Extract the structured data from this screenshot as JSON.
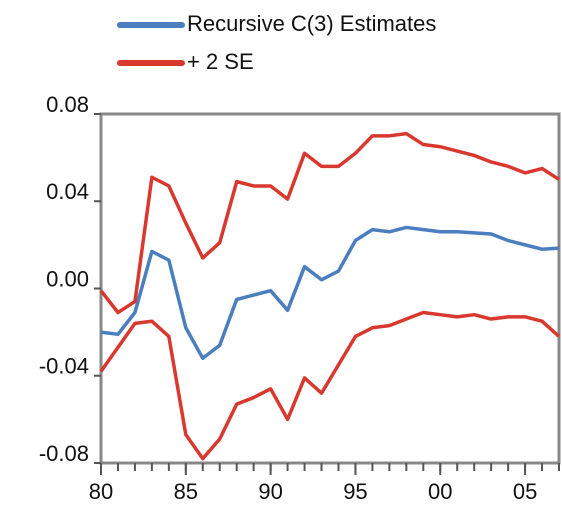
{
  "chart_data": {
    "type": "line",
    "x": [
      1980,
      1981,
      1982,
      1983,
      1984,
      1985,
      1986,
      1987,
      1988,
      1989,
      1990,
      1991,
      1992,
      1993,
      1994,
      1995,
      1996,
      1997,
      1998,
      1999,
      2000,
      2001,
      2002,
      2003,
      2004,
      2005,
      2006,
      2007
    ],
    "series": [
      {
        "name": "Recursive C(3) Estimates",
        "color": "#4a7ebf",
        "values": [
          -0.02,
          -0.021,
          -0.011,
          0.017,
          0.013,
          -0.018,
          -0.032,
          -0.026,
          -0.005,
          -0.003,
          -0.001,
          -0.01,
          0.01,
          0.004,
          0.008,
          0.022,
          0.027,
          0.026,
          0.028,
          0.027,
          0.026,
          0.026,
          0.0255,
          0.025,
          0.022,
          0.02,
          0.018,
          0.0185
        ]
      },
      {
        "name": "+ 2 SE",
        "color": "#d9382e",
        "values": [
          -0.001,
          -0.011,
          -0.006,
          0.051,
          0.047,
          0.03,
          0.014,
          0.021,
          0.049,
          0.047,
          0.047,
          0.041,
          0.062,
          0.056,
          0.056,
          0.062,
          0.07,
          0.07,
          0.071,
          0.066,
          0.065,
          0.063,
          0.061,
          0.058,
          0.056,
          0.053,
          0.055,
          0.05
        ]
      },
      {
        "color": "#d9382e",
        "values": [
          -0.038,
          -0.027,
          -0.016,
          -0.015,
          -0.022,
          -0.067,
          -0.078,
          -0.069,
          -0.053,
          -0.05,
          -0.046,
          -0.06,
          -0.041,
          -0.048,
          -0.035,
          -0.022,
          -0.018,
          -0.017,
          -0.014,
          -0.011,
          -0.012,
          -0.013,
          -0.012,
          -0.014,
          -0.013,
          -0.013,
          -0.015,
          -0.022
        ]
      }
    ],
    "xlim": [
      1980,
      2007
    ],
    "xticks": [
      {
        "value": 1980,
        "label": "80"
      },
      {
        "value": 1985,
        "label": "85"
      },
      {
        "value": 1990,
        "label": "90"
      },
      {
        "value": 1995,
        "label": "95"
      },
      {
        "value": 2000,
        "label": "00"
      },
      {
        "value": 2005,
        "label": "05"
      }
    ],
    "ylim": [
      -0.08,
      0.08
    ],
    "yticks": [
      -0.08,
      -0.04,
      {
        "value": 0,
        "label": "0.00"
      },
      0.04,
      0.08
    ]
  }
}
